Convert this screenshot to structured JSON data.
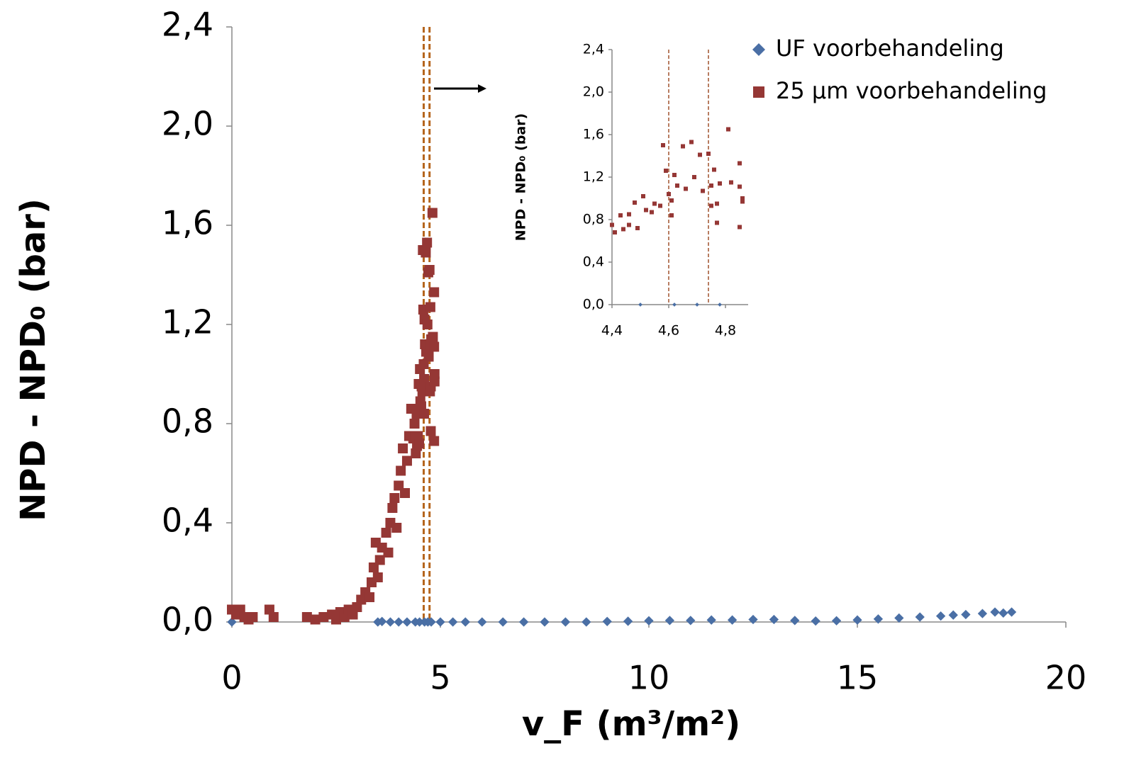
{
  "chart_data": [
    {
      "type": "scatter",
      "xlabel": "v_F (m³/m²)",
      "ylabel": "NPD - NPD₀ (bar)",
      "xlim": [
        0,
        20
      ],
      "ylim": [
        0,
        2.4
      ],
      "xticks": [
        0,
        5,
        10,
        15,
        20
      ],
      "yticks": [
        {
          "value": 0,
          "label": "0,0"
        },
        {
          "value": 0.4,
          "label": "0,4"
        },
        {
          "value": 0.8,
          "label": "0,8"
        },
        {
          "value": 1.2,
          "label": "1,2"
        },
        {
          "value": 1.6,
          "label": "1,6"
        },
        {
          "value": 2.0,
          "label": "2,0"
        },
        {
          "value": 2.4,
          "label": "2,4"
        }
      ],
      "legend": "upper right",
      "vlines": [
        4.6,
        4.74
      ],
      "vline_color": "#b5651d",
      "series": [
        {
          "name": "UF voorbehandeling",
          "color": "#4a6fa5",
          "marker": "diamond",
          "x": [
            0,
            3.5,
            3.6,
            3.8,
            4.0,
            4.2,
            4.4,
            4.5,
            4.62,
            4.7,
            4.78,
            5,
            5.3,
            5.6,
            6,
            6.5,
            7,
            7.5,
            8,
            8.5,
            9,
            9.5,
            10,
            10.5,
            11,
            11.5,
            12,
            12.5,
            13,
            13.5,
            14,
            14.5,
            15,
            15.5,
            16,
            16.5,
            17,
            17.3,
            17.6,
            18,
            18.3,
            18.5,
            18.7
          ],
          "values": [
            0,
            0,
            0.002,
            0,
            0,
            0,
            0,
            0,
            0,
            0,
            0,
            0,
            0,
            0,
            0,
            0,
            0,
            0,
            0,
            0,
            0.002,
            0.003,
            0.005,
            0.006,
            0.006,
            0.008,
            0.008,
            0.01,
            0.01,
            0.006,
            0.004,
            0.005,
            0.008,
            0.012,
            0.016,
            0.02,
            0.024,
            0.028,
            0.03,
            0.034,
            0.04,
            0.036,
            0.04
          ]
        },
        {
          "name": "25 µm voorbehandeling",
          "color": "#953735",
          "marker": "square",
          "x": [
            0,
            0.1,
            0.2,
            0.3,
            0.4,
            0.5,
            0.9,
            1.0,
            1.8,
            2.0,
            2.2,
            2.4,
            2.5,
            2.6,
            2.7,
            2.8,
            2.9,
            3.0,
            3.1,
            3.2,
            3.3,
            3.35,
            3.4,
            3.45,
            3.5,
            3.55,
            3.6,
            3.7,
            3.75,
            3.8,
            3.85,
            3.9,
            3.95,
            4.0,
            4.05,
            4.1,
            4.15,
            4.2,
            4.25,
            4.3,
            4.35,
            4.38,
            4.4,
            4.41,
            4.43,
            4.44,
            4.46,
            4.46,
            4.48,
            4.49,
            4.51,
            4.52,
            4.54,
            4.55,
            4.57,
            4.58,
            4.59,
            4.6,
            4.61,
            4.61,
            4.62,
            4.63,
            4.65,
            4.66,
            4.68,
            4.69,
            4.71,
            4.72,
            4.74,
            4.75,
            4.75,
            4.76,
            4.77,
            4.77,
            4.78,
            4.81,
            4.82,
            4.85,
            4.85,
            4.85,
            4.86,
            4.86
          ],
          "values": [
            0.05,
            0.03,
            0.05,
            0.02,
            0.01,
            0.02,
            0.05,
            0.02,
            0.02,
            0.01,
            0.02,
            0.03,
            0.01,
            0.04,
            0.02,
            0.05,
            0.03,
            0.06,
            0.09,
            0.12,
            0.1,
            0.16,
            0.22,
            0.32,
            0.18,
            0.25,
            0.3,
            0.36,
            0.28,
            0.4,
            0.46,
            0.5,
            0.38,
            0.55,
            0.61,
            0.7,
            0.52,
            0.65,
            0.75,
            0.86,
            0.74,
            0.8,
            0.75,
            0.68,
            0.84,
            0.71,
            0.85,
            0.75,
            0.96,
            0.72,
            1.02,
            0.89,
            0.87,
            0.95,
            0.93,
            1.5,
            1.26,
            1.04,
            0.98,
            0.84,
            1.22,
            1.12,
            1.49,
            1.09,
            1.53,
            1.2,
            1.41,
            1.07,
            1.42,
            0.93,
            1.12,
            1.27,
            0.95,
            0.77,
            1.14,
            1.65,
            1.15,
            1.33,
            1.11,
            0.73,
            0.97,
            1.0
          ]
        }
      ]
    },
    {
      "type": "scatter",
      "ylabel": "NPD - NPD₀ (bar)",
      "xlim": [
        4.4,
        4.88
      ],
      "ylim": [
        0,
        2.4
      ],
      "xticks": [
        {
          "value": 4.4,
          "label": "4,4"
        },
        {
          "value": 4.6,
          "label": "4,6"
        },
        {
          "value": 4.8,
          "label": "4,8"
        }
      ],
      "yticks": [
        {
          "value": 0,
          "label": "0,0"
        },
        {
          "value": 0.4,
          "label": "0,4"
        },
        {
          "value": 0.8,
          "label": "0,8"
        },
        {
          "value": 1.2,
          "label": "1,2"
        },
        {
          "value": 1.6,
          "label": "1,6"
        },
        {
          "value": 2.0,
          "label": "2,0"
        },
        {
          "value": 2.4,
          "label": "2,4"
        }
      ],
      "vlines": [
        4.6,
        4.74
      ],
      "vline_color": "#a0522d",
      "series": [
        {
          "color": "#4a6fa5",
          "marker": "diamond",
          "x": [
            4.5,
            4.62,
            4.7,
            4.78
          ],
          "values": [
            0,
            0,
            0,
            0
          ]
        },
        {
          "color": "#953735",
          "marker": "square",
          "x": [
            4.4,
            4.41,
            4.43,
            4.44,
            4.46,
            4.46,
            4.48,
            4.49,
            4.51,
            4.52,
            4.54,
            4.55,
            4.57,
            4.58,
            4.59,
            4.6,
            4.61,
            4.61,
            4.62,
            4.63,
            4.65,
            4.66,
            4.68,
            4.69,
            4.71,
            4.72,
            4.74,
            4.75,
            4.75,
            4.76,
            4.77,
            4.77,
            4.78,
            4.81,
            4.82,
            4.85,
            4.85,
            4.85,
            4.86,
            4.86
          ],
          "values": [
            0.75,
            0.68,
            0.84,
            0.71,
            0.85,
            0.75,
            0.96,
            0.72,
            1.02,
            0.89,
            0.87,
            0.95,
            0.93,
            1.5,
            1.26,
            1.04,
            0.98,
            0.84,
            1.22,
            1.12,
            1.49,
            1.09,
            1.53,
            1.2,
            1.41,
            1.07,
            1.42,
            0.93,
            1.12,
            1.27,
            0.95,
            0.77,
            1.14,
            1.65,
            1.15,
            1.33,
            1.11,
            0.73,
            0.97,
            1.0
          ]
        }
      ]
    }
  ]
}
